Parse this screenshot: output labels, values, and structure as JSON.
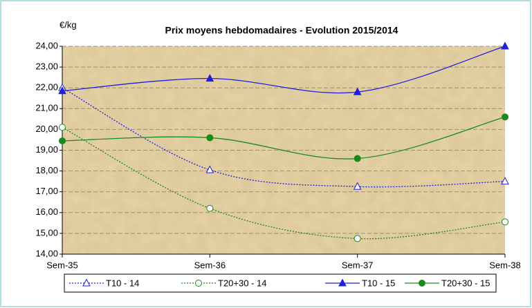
{
  "chart_data": {
    "type": "line",
    "title": "Prix moyens hebdomadaires - Evolution 2015/2014",
    "y_label": "€/kg",
    "categories": [
      "Sem-35",
      "Sem-36",
      "Sem-37",
      "Sem-38"
    ],
    "series": [
      {
        "name": "T10 - 14",
        "color": "#1f1fe0",
        "dashed": true,
        "marker": "triangle-open",
        "values": [
          22.0,
          18.05,
          17.25,
          17.5
        ]
      },
      {
        "name": "T20+30 - 14",
        "color": "#1a8a1a",
        "dashed": true,
        "marker": "circle-open",
        "values": [
          20.1,
          16.2,
          14.75,
          15.55
        ]
      },
      {
        "name": "T10 - 15",
        "color": "#1f1fe0",
        "dashed": false,
        "marker": "triangle-filled",
        "values": [
          21.85,
          22.45,
          21.8,
          24.0
        ]
      },
      {
        "name": "T20+30 - 15",
        "color": "#1a8a1a",
        "dashed": false,
        "marker": "circle-filled",
        "values": [
          19.45,
          19.6,
          18.6,
          20.6
        ]
      }
    ],
    "ylim": [
      14,
      24
    ],
    "yticks": [
      {
        "value": 14,
        "label": "14,00"
      },
      {
        "value": 15,
        "label": "15,00"
      },
      {
        "value": 16,
        "label": "16,00"
      },
      {
        "value": 17,
        "label": "17,00"
      },
      {
        "value": 18,
        "label": "18,00"
      },
      {
        "value": 19,
        "label": "19,00"
      },
      {
        "value": 20,
        "label": "20,00"
      },
      {
        "value": 21,
        "label": "21,00"
      },
      {
        "value": 22,
        "label": "22,00"
      },
      {
        "value": 23,
        "label": "23,00"
      },
      {
        "value": 24,
        "label": "24,00"
      }
    ],
    "grid": true,
    "legend": "bottom"
  }
}
